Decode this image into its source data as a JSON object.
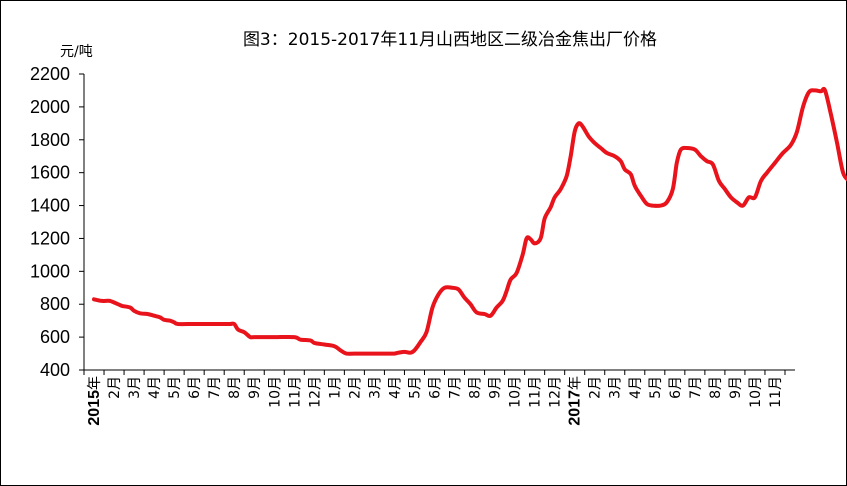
{
  "chart_data": {
    "type": "line",
    "title": "图3：2015-2017年11月山西地区二级冶金焦出厂价格",
    "ylabel": "元/吨",
    "xlabel": "",
    "ylim": [
      400,
      2200
    ],
    "yticks": [
      400,
      600,
      800,
      1000,
      1200,
      1400,
      1600,
      1800,
      2000,
      2200
    ],
    "grid": false,
    "legend": "none",
    "colors": {
      "series": "#e8131b",
      "axis": "#000000"
    },
    "x_tick_labels": [
      {
        "label": "2015年",
        "year": "2015",
        "suffix": "年"
      },
      {
        "label": "2月"
      },
      {
        "label": "3月"
      },
      {
        "label": "4月"
      },
      {
        "label": "5月"
      },
      {
        "label": "6月"
      },
      {
        "label": "7月"
      },
      {
        "label": "8月"
      },
      {
        "label": "9月"
      },
      {
        "label": "10月"
      },
      {
        "label": "11月"
      },
      {
        "label": "12月"
      },
      {
        "label": "1月"
      },
      {
        "label": "2月"
      },
      {
        "label": "3月"
      },
      {
        "label": "4月"
      },
      {
        "label": "5月"
      },
      {
        "label": "6月"
      },
      {
        "label": "7月"
      },
      {
        "label": "8月"
      },
      {
        "label": "9月"
      },
      {
        "label": "10月"
      },
      {
        "label": "11月"
      },
      {
        "label": "12月"
      },
      {
        "label": "2017年",
        "year": "2017",
        "suffix": "年"
      },
      {
        "label": "2月"
      },
      {
        "label": "3月"
      },
      {
        "label": "4月"
      },
      {
        "label": "5月"
      },
      {
        "label": "6月"
      },
      {
        "label": "7月"
      },
      {
        "label": "8月"
      },
      {
        "label": "9月"
      },
      {
        "label": "10月"
      },
      {
        "label": "11月"
      }
    ],
    "series": [
      {
        "values": [
          [
            0.0,
            830
          ],
          [
            0.4,
            820
          ],
          [
            0.8,
            820
          ],
          [
            1.2,
            800
          ],
          [
            1.4,
            790
          ],
          [
            1.8,
            780
          ],
          [
            2.0,
            760
          ],
          [
            2.3,
            745
          ],
          [
            2.7,
            740
          ],
          [
            3.0,
            730
          ],
          [
            3.3,
            720
          ],
          [
            3.5,
            705
          ],
          [
            3.8,
            700
          ],
          [
            4.0,
            690
          ],
          [
            4.2,
            680
          ],
          [
            5.0,
            680
          ],
          [
            6.0,
            680
          ],
          [
            6.5,
            680
          ],
          [
            6.8,
            680
          ],
          [
            7.0,
            680
          ],
          [
            7.2,
            645
          ],
          [
            7.5,
            630
          ],
          [
            7.8,
            600
          ],
          [
            8.0,
            600
          ],
          [
            9.0,
            600
          ],
          [
            10.0,
            600
          ],
          [
            10.3,
            585
          ],
          [
            10.8,
            580
          ],
          [
            11.0,
            565
          ],
          [
            11.5,
            555
          ],
          [
            12.0,
            545
          ],
          [
            12.3,
            520
          ],
          [
            12.6,
            500
          ],
          [
            13.0,
            500
          ],
          [
            14.0,
            500
          ],
          [
            14.6,
            500
          ],
          [
            15.0,
            500
          ],
          [
            15.2,
            505
          ],
          [
            15.5,
            510
          ],
          [
            15.8,
            505
          ],
          [
            16.0,
            520
          ],
          [
            16.3,
            570
          ],
          [
            16.6,
            630
          ],
          [
            16.9,
            780
          ],
          [
            17.2,
            860
          ],
          [
            17.5,
            900
          ],
          [
            17.9,
            900
          ],
          [
            18.2,
            890
          ],
          [
            18.5,
            840
          ],
          [
            18.8,
            800
          ],
          [
            19.1,
            750
          ],
          [
            19.5,
            740
          ],
          [
            19.8,
            730
          ],
          [
            20.1,
            780
          ],
          [
            20.4,
            820
          ],
          [
            20.6,
            880
          ],
          [
            20.8,
            950
          ],
          [
            21.1,
            990
          ],
          [
            21.4,
            1100
          ],
          [
            21.6,
            1200
          ],
          [
            21.8,
            1195
          ],
          [
            22.0,
            1170
          ],
          [
            22.3,
            1200
          ],
          [
            22.5,
            1320
          ],
          [
            22.8,
            1390
          ],
          [
            23.0,
            1450
          ],
          [
            23.3,
            1500
          ],
          [
            23.6,
            1580
          ],
          [
            23.8,
            1700
          ],
          [
            24.0,
            1850
          ],
          [
            24.2,
            1900
          ],
          [
            24.4,
            1880
          ],
          [
            24.7,
            1820
          ],
          [
            25.0,
            1780
          ],
          [
            25.3,
            1750
          ],
          [
            25.6,
            1720
          ],
          [
            26.0,
            1700
          ],
          [
            26.3,
            1670
          ],
          [
            26.5,
            1620
          ],
          [
            26.8,
            1590
          ],
          [
            27.0,
            1520
          ],
          [
            27.3,
            1460
          ],
          [
            27.6,
            1410
          ],
          [
            27.9,
            1400
          ],
          [
            28.3,
            1400
          ],
          [
            28.6,
            1420
          ],
          [
            28.9,
            1500
          ],
          [
            29.1,
            1660
          ],
          [
            29.3,
            1740
          ],
          [
            29.6,
            1750
          ],
          [
            30.0,
            1740
          ],
          [
            30.3,
            1700
          ],
          [
            30.6,
            1670
          ],
          [
            30.9,
            1650
          ],
          [
            31.2,
            1550
          ],
          [
            31.5,
            1500
          ],
          [
            31.8,
            1450
          ],
          [
            32.1,
            1420
          ],
          [
            32.4,
            1400
          ],
          [
            32.7,
            1450
          ],
          [
            33.0,
            1450
          ],
          [
            33.3,
            1550
          ],
          [
            33.6,
            1600
          ],
          [
            34.0,
            1660
          ],
          [
            34.4,
            1720
          ],
          [
            34.8,
            1770
          ],
          [
            35.1,
            1850
          ],
          [
            35.4,
            2000
          ],
          [
            35.7,
            2090
          ],
          [
            36.0,
            2100
          ],
          [
            36.3,
            2095
          ],
          [
            36.5,
            2100
          ],
          [
            36.8,
            1950
          ],
          [
            37.1,
            1780
          ],
          [
            37.4,
            1600
          ],
          [
            37.7,
            1550
          ],
          [
            38.0,
            1510
          ],
          [
            38.4,
            1450
          ]
        ]
      }
    ]
  }
}
